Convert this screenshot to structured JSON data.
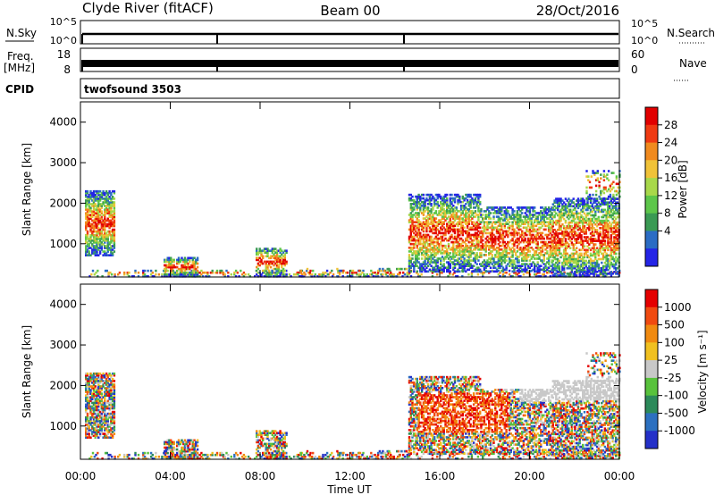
{
  "header": {
    "station": "Clyde River (fitACF)",
    "beam": "Beam 00",
    "date": "28/Oct/2016"
  },
  "strips": {
    "nsky_label": "N.Sky",
    "nsearch_label": "N.Search",
    "freq_label": "Freq.",
    "freq_unit": "[MHz]",
    "nave_label": "Nave",
    "cpid_label": "CPID",
    "cpid_value": "twofsound 3503",
    "noise_ticks": [
      "10^5",
      "10^0"
    ],
    "freq_ticks": [
      "18",
      "8"
    ],
    "nave_ticks": [
      "60",
      "0"
    ]
  },
  "chart_data": [
    {
      "type": "heatmap",
      "name": "power",
      "ylabel": "Slant Range [km]",
      "xlabel": "Time UT",
      "x_ticks": [
        "00:00",
        "04:00",
        "08:00",
        "12:00",
        "16:00",
        "20:00",
        "00:00"
      ],
      "xlim": [
        0,
        24
      ],
      "ylim": [
        180,
        4500
      ],
      "y_ticks": [
        1000,
        2000,
        3000,
        4000
      ],
      "colorbar": {
        "label": "Power [dB]",
        "ticks": [
          "4",
          "8",
          "12",
          "16",
          "20",
          "24",
          "28"
        ],
        "colors": [
          "#2424e6",
          "#2b6cc4",
          "#3a9a54",
          "#5dc64a",
          "#a8d84a",
          "#f0c238",
          "#f08a1e",
          "#ef3a12",
          "#e10000"
        ]
      }
    },
    {
      "type": "heatmap",
      "name": "velocity",
      "ylabel": "Slant Range [km]",
      "xlabel": "Time UT",
      "x_ticks": [
        "00:00",
        "04:00",
        "08:00",
        "12:00",
        "16:00",
        "20:00",
        "00:00"
      ],
      "xlim": [
        0,
        24
      ],
      "ylim": [
        180,
        4500
      ],
      "y_ticks": [
        1000,
        2000,
        3000,
        4000
      ],
      "colorbar": {
        "label": "Velocity [m s⁻¹]",
        "ticks": [
          "1000",
          "500",
          "100",
          "25",
          "-25",
          "-100",
          "-500",
          "-1000"
        ],
        "colors": [
          "#2430c8",
          "#2c70c0",
          "#2c8a5a",
          "#58c23c",
          "#c8c8c8",
          "#f0c020",
          "#f08a10",
          "#f04a10",
          "#e40000"
        ]
      }
    }
  ]
}
